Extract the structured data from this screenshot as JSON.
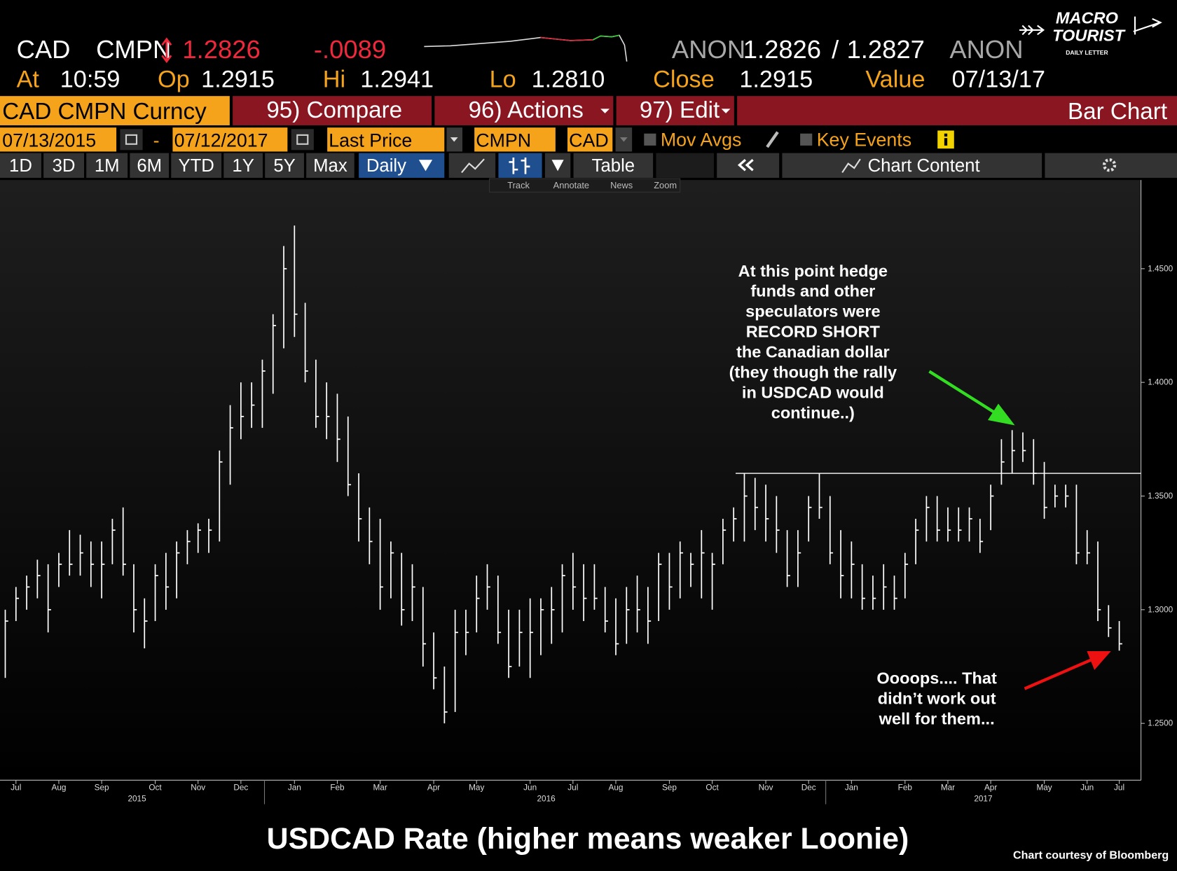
{
  "header": {
    "ticker": "CAD",
    "source": "CMPN",
    "last": "1.2826",
    "change": "-.0089",
    "bid_source": "ANON",
    "bid": "1.2826",
    "separator": "/",
    "ask": "1.2827",
    "ask_source": "ANON",
    "at_label": "At",
    "at": "10:59",
    "open_label": "Op",
    "open": "1.2915",
    "high_label": "Hi",
    "high": "1.2941",
    "low_label": "Lo",
    "low": "1.2810",
    "close_label": "Close",
    "close": "1.2915",
    "value_label": "Value",
    "value": "07/13/17"
  },
  "logo": {
    "line1": "MACRO",
    "line2": "TOURIST",
    "line3": "DAILY LETTER"
  },
  "menu": {
    "security": "CAD CMPN Curncy",
    "compare": "95) Compare",
    "actions": "96) Actions",
    "edit": "97) Edit",
    "view": "Bar Chart"
  },
  "settings": {
    "start": "07/13/2015",
    "dash": "-",
    "end": "07/12/2017",
    "field": "Last Price",
    "pricing": "CMPN",
    "currency": "CAD",
    "mov_avgs": "Mov Avgs",
    "key_events": "Key Events"
  },
  "periods": {
    "buttons": [
      "1D",
      "3D",
      "1M",
      "6M",
      "YTD",
      "1Y",
      "5Y",
      "Max"
    ],
    "frequency": "Daily",
    "table": "Table",
    "chart_content": "Chart Content"
  },
  "toolbar": [
    "Track",
    "Annotate",
    "News",
    "Zoom"
  ],
  "chart_data": {
    "type": "ohlc",
    "title": "USDCAD Rate (higher means weaker Loonie)",
    "source_note": "Chart courtesy of Bloomberg",
    "color": "#ffffff",
    "categories": [
      null,
      "Jul",
      null,
      null,
      null,
      "Aug",
      null,
      null,
      null,
      "Sep",
      null,
      null,
      null,
      null,
      "Oct",
      null,
      null,
      null,
      "Nov",
      null,
      null,
      null,
      "Dec",
      null,
      null,
      null,
      null,
      "Jan",
      null,
      null,
      null,
      "Feb",
      null,
      null,
      null,
      "Mar",
      null,
      null,
      null,
      null,
      "Apr",
      null,
      null,
      null,
      "May",
      null,
      null,
      null,
      null,
      "Jun",
      null,
      null,
      null,
      "Jul",
      null,
      null,
      null,
      "Aug",
      null,
      null,
      null,
      null,
      "Sep",
      null,
      null,
      null,
      "Oct",
      null,
      null,
      null,
      null,
      "Nov",
      null,
      null,
      null,
      "Dec",
      null,
      null,
      null,
      "Jan",
      null,
      null,
      null,
      null,
      "Feb",
      null,
      null,
      null,
      "Mar",
      null,
      null,
      null,
      "Apr",
      null,
      null,
      null,
      null,
      "May",
      null,
      null,
      null,
      "Jun",
      null,
      null,
      "Jul"
    ],
    "years": [
      "2015",
      "2016",
      "2017"
    ],
    "low": [
      1.27,
      1.295,
      1.3,
      1.305,
      1.29,
      1.31,
      1.315,
      1.315,
      1.31,
      1.305,
      1.32,
      1.315,
      1.29,
      1.283,
      1.295,
      1.3,
      1.305,
      1.32,
      1.325,
      1.325,
      1.33,
      1.355,
      1.375,
      1.38,
      1.38,
      1.395,
      1.415,
      1.42,
      1.4,
      1.38,
      1.375,
      1.365,
      1.35,
      1.33,
      1.32,
      1.3,
      1.305,
      1.293,
      1.295,
      1.275,
      1.265,
      1.25,
      1.255,
      1.28,
      1.29,
      1.3,
      1.285,
      1.27,
      1.275,
      1.27,
      1.28,
      1.285,
      1.29,
      1.3,
      1.295,
      1.3,
      1.29,
      1.28,
      1.285,
      1.29,
      1.285,
      1.295,
      1.3,
      1.305,
      1.31,
      1.305,
      1.3,
      1.32,
      1.33,
      1.33,
      1.335,
      1.33,
      1.325,
      1.31,
      1.31,
      1.33,
      1.34,
      1.32,
      1.305,
      1.305,
      1.3,
      1.3,
      1.3,
      1.3,
      1.305,
      1.32,
      1.33,
      1.33,
      1.33,
      1.33,
      1.33,
      1.325,
      1.335,
      1.355,
      1.36,
      1.365,
      1.355,
      1.34,
      1.345,
      1.345,
      1.32,
      1.32,
      1.295,
      1.288,
      1.282
    ],
    "high": [
      1.3,
      1.31,
      1.315,
      1.322,
      1.32,
      1.325,
      1.335,
      1.333,
      1.33,
      1.33,
      1.34,
      1.345,
      1.32,
      1.305,
      1.32,
      1.325,
      1.33,
      1.335,
      1.338,
      1.34,
      1.37,
      1.39,
      1.4,
      1.4,
      1.41,
      1.43,
      1.46,
      1.469,
      1.435,
      1.41,
      1.4,
      1.395,
      1.385,
      1.36,
      1.345,
      1.34,
      1.33,
      1.325,
      1.32,
      1.31,
      1.29,
      1.275,
      1.3,
      1.3,
      1.315,
      1.32,
      1.315,
      1.3,
      1.3,
      1.305,
      1.305,
      1.31,
      1.32,
      1.325,
      1.32,
      1.32,
      1.31,
      1.305,
      1.31,
      1.315,
      1.31,
      1.325,
      1.325,
      1.33,
      1.325,
      1.335,
      1.325,
      1.34,
      1.345,
      1.36,
      1.358,
      1.355,
      1.35,
      1.335,
      1.335,
      1.35,
      1.36,
      1.35,
      1.335,
      1.33,
      1.32,
      1.315,
      1.32,
      1.315,
      1.325,
      1.34,
      1.35,
      1.35,
      1.345,
      1.345,
      1.345,
      1.34,
      1.355,
      1.375,
      1.379,
      1.378,
      1.375,
      1.365,
      1.355,
      1.355,
      1.355,
      1.335,
      1.33,
      1.302,
      1.295
    ],
    "close": [
      1.295,
      1.305,
      1.31,
      1.315,
      1.3,
      1.32,
      1.32,
      1.325,
      1.32,
      1.32,
      1.335,
      1.32,
      1.3,
      1.295,
      1.315,
      1.31,
      1.325,
      1.33,
      1.335,
      1.335,
      1.365,
      1.38,
      1.385,
      1.39,
      1.405,
      1.425,
      1.45,
      1.43,
      1.405,
      1.385,
      1.385,
      1.375,
      1.355,
      1.34,
      1.33,
      1.31,
      1.325,
      1.3,
      1.31,
      1.285,
      1.27,
      1.255,
      1.29,
      1.29,
      1.305,
      1.31,
      1.29,
      1.275,
      1.29,
      1.29,
      1.3,
      1.3,
      1.315,
      1.31,
      1.305,
      1.305,
      1.295,
      1.285,
      1.3,
      1.3,
      1.295,
      1.32,
      1.31,
      1.325,
      1.32,
      1.325,
      1.32,
      1.335,
      1.34,
      1.35,
      1.345,
      1.34,
      1.335,
      1.315,
      1.325,
      1.345,
      1.345,
      1.325,
      1.315,
      1.32,
      1.305,
      1.305,
      1.31,
      1.305,
      1.32,
      1.335,
      1.345,
      1.335,
      1.335,
      1.335,
      1.34,
      1.33,
      1.35,
      1.365,
      1.37,
      1.37,
      1.36,
      1.345,
      1.35,
      1.35,
      1.325,
      1.325,
      1.3,
      1.292,
      1.285
    ],
    "ylim": [
      1.225,
      1.489
    ],
    "yticks": [
      {
        "value": 1.25,
        "label": "1.2500"
      },
      {
        "value": 1.3,
        "label": "1.3000"
      },
      {
        "value": 1.35,
        "label": "1.3500"
      },
      {
        "value": 1.4,
        "label": "1.4000"
      },
      {
        "value": 1.45,
        "label": "1.4500"
      }
    ],
    "reference_line": 1.36,
    "annotations": [
      {
        "lines": [
          "At this point hedge",
          "funds and other",
          "speculators were",
          "RECORD SHORT",
          "the Canadian dollar",
          "(they though the rally",
          "in USDCAD would",
          "continue..)"
        ]
      },
      {
        "lines": [
          "Oooops.... That",
          "didn’t work out",
          "well for them..."
        ]
      }
    ]
  }
}
